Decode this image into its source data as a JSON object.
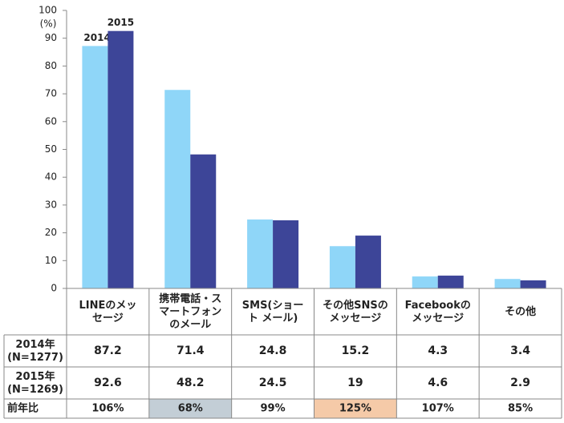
{
  "chart_data": {
    "type": "bar",
    "y_unit": "(%)",
    "categories": [
      [
        "LINEのメッ",
        "セージ"
      ],
      [
        "携帯電話・ス",
        "マートフォン",
        "のメール"
      ],
      [
        "SMS(ショー",
        "ト メール)"
      ],
      [
        "その他SNSの",
        "メッセージ"
      ],
      [
        "Facebookの",
        "メッセージ"
      ],
      [
        "その他"
      ]
    ],
    "series": [
      {
        "name": "2014",
        "color": "#8fd6f8",
        "values": [
          87.2,
          71.4,
          24.8,
          15.2,
          4.3,
          3.4
        ]
      },
      {
        "name": "2015",
        "color": "#3d4598",
        "values": [
          92.6,
          48.2,
          24.5,
          19,
          4.6,
          2.9
        ]
      }
    ],
    "ylim": [
      0,
      100
    ],
    "yticks": [
      0,
      10,
      20,
      30,
      40,
      50,
      60,
      70,
      80,
      90,
      100
    ],
    "table": {
      "row_labels": [
        [
          "2014年",
          "(N=1277)"
        ],
        [
          "2015年",
          "(N=1269)"
        ]
      ],
      "ratio_label": "前年比",
      "ratio": [
        "106%",
        "68%",
        "99%",
        "125%",
        "107%",
        "85%"
      ],
      "highlights": [
        {
          "index": 1,
          "color": "#c3ced6"
        },
        {
          "index": 3,
          "color": "#f5caa8"
        }
      ]
    }
  }
}
